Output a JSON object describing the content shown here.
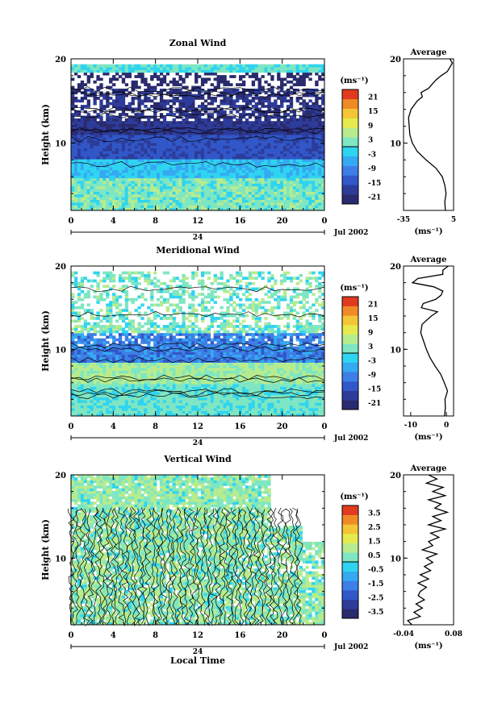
{
  "chart_data": [
    {
      "type": "heatmap",
      "title": "Zonal Wind",
      "ylabel": "Height (km)",
      "y_ticks": [
        "20",
        "10"
      ],
      "ylim": [
        2,
        20
      ],
      "x_ticks": [
        "0",
        "4",
        "8",
        "12",
        "16",
        "20",
        "0"
      ],
      "xlim": [
        0,
        24
      ],
      "day_label": "24",
      "date_label": "Jul 2002",
      "colorbar": {
        "unit_label": "(ms⁻¹)",
        "ticks": [
          "21",
          "15",
          "9",
          "3",
          "-3",
          "-9",
          "-15",
          "-21"
        ],
        "range": [
          -24,
          24
        ]
      },
      "profile": {
        "title": "Average",
        "xlabel": "(ms⁻¹)",
        "x_ticks": [
          "-35",
          "5"
        ],
        "xlim": [
          -35,
          5
        ],
        "y_ticks": [
          "20",
          "10"
        ],
        "heights": [
          2,
          3,
          4,
          5,
          6,
          7,
          8,
          9,
          10,
          11,
          12,
          13,
          14,
          15,
          15.5,
          16,
          16.5,
          17,
          17.5,
          18,
          18.5,
          19,
          19.5,
          20
        ],
        "values": [
          -1.5,
          -2,
          -1,
          -2,
          -4,
          -9,
          -17,
          -24,
          -28,
          -30,
          -30.5,
          -31,
          -29,
          -24,
          -20,
          -21,
          -15,
          -12,
          -9,
          -5,
          0,
          2,
          4,
          2
        ]
      }
    },
    {
      "type": "heatmap",
      "title": "Meridional Wind",
      "ylabel": "Height (km)",
      "y_ticks": [
        "20",
        "10"
      ],
      "ylim": [
        2,
        20
      ],
      "x_ticks": [
        "0",
        "4",
        "8",
        "12",
        "16",
        "20",
        "0"
      ],
      "xlim": [
        0,
        24
      ],
      "day_label": "24",
      "date_label": "Jul 2002",
      "colorbar": {
        "unit_label": "(ms⁻¹)",
        "ticks": [
          "21",
          "15",
          "9",
          "3",
          "-3",
          "-9",
          "-15",
          "-21"
        ],
        "range": [
          -24,
          24
        ]
      },
      "profile": {
        "title": "Average",
        "xlabel": "(ms⁻¹)",
        "x_ticks": [
          "-10",
          "0"
        ],
        "xlim": [
          -12,
          2
        ],
        "y_ticks": [
          "20",
          "10"
        ],
        "heights": [
          2,
          3,
          4,
          5,
          6,
          7,
          8,
          9,
          10,
          11,
          12,
          13,
          14,
          14.5,
          15,
          15.5,
          16,
          16.5,
          17,
          17.5,
          18,
          18.5,
          19,
          19.5,
          20
        ],
        "values": [
          -0.5,
          -0.3,
          -0.4,
          0.3,
          -0.6,
          -1.6,
          -3.2,
          -4.6,
          -5.6,
          -6.4,
          -7.2,
          -6.8,
          -4.2,
          -2.5,
          -7,
          -6.5,
          -3,
          -1.5,
          -1,
          -3.5,
          -9.5,
          -8,
          -1,
          -1,
          0.5
        ]
      }
    },
    {
      "type": "heatmap",
      "title": "Vertical Wind",
      "ylabel": "Height (km)",
      "y_ticks": [
        "20",
        "10"
      ],
      "ylim": [
        2,
        20
      ],
      "x_ticks": [
        "0",
        "4",
        "8",
        "12",
        "16",
        "20",
        "0"
      ],
      "xlim": [
        0,
        24
      ],
      "day_label": "24",
      "date_label": "Jul 2002",
      "xlabel": "Local Time",
      "colorbar": {
        "unit_label": "(ms⁻¹)",
        "ticks": [
          "3.5",
          "2.5",
          "1.5",
          "0.5",
          "-0.5",
          "-1.5",
          "-2.5",
          "-3.5"
        ],
        "range": [
          -4,
          4
        ]
      },
      "profile": {
        "title": "Average",
        "xlabel": "(ms⁻¹)",
        "x_ticks": [
          "-0.04",
          "0.08"
        ],
        "xlim": [
          -0.04,
          0.08
        ],
        "y_ticks": [
          "20",
          "10"
        ],
        "heights": [
          2,
          2.5,
          3,
          3.5,
          4,
          4.5,
          5,
          5.5,
          6,
          6.5,
          7,
          7.5,
          8,
          8.5,
          9,
          9.5,
          10,
          10.5,
          11,
          11.5,
          12,
          12.5,
          13,
          13.5,
          14,
          14.5,
          15,
          15.5,
          16,
          16.5,
          17,
          17.5,
          18,
          18.5,
          19,
          19.5,
          20
        ],
        "values": [
          -0.02,
          -0.03,
          0.0,
          -0.015,
          0.005,
          -0.01,
          0.01,
          -0.005,
          0.0,
          0.015,
          -0.005,
          0.02,
          0.0,
          0.025,
          0.01,
          0.03,
          0.015,
          0.04,
          0.005,
          0.03,
          0.02,
          0.045,
          0.025,
          0.06,
          0.02,
          0.05,
          0.03,
          0.065,
          0.035,
          0.05,
          0.02,
          0.06,
          0.03,
          0.055,
          0.015,
          0.04,
          0.02
        ]
      }
    }
  ]
}
